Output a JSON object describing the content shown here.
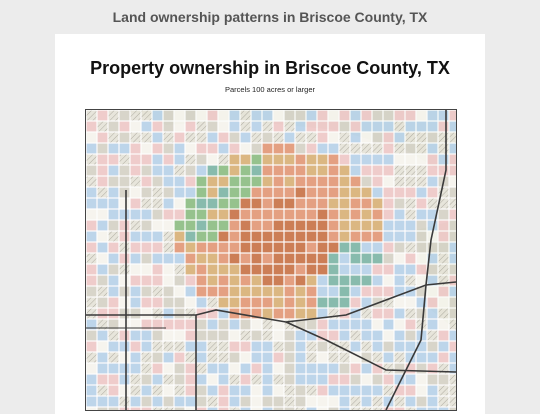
{
  "page": {
    "title": "Land ownership patterns in Briscoe County, TX"
  },
  "map": {
    "title": "Property ownership in Briscoe County, TX",
    "subtitle": "Parcels 100 acres or larger",
    "colors": {
      "background": "#f3f2ec",
      "green": "#8fbf86",
      "teal": "#7fb7a8",
      "tan": "#d9b27a",
      "salmon": "#e39a7a",
      "rust": "#c9754a",
      "light_blue": "#b9d3ea",
      "light_pink": "#efc9c9",
      "hatched": "#d6d3c8",
      "road": "#3a3a3a",
      "terrain": "#b6cf9a"
    }
  }
}
